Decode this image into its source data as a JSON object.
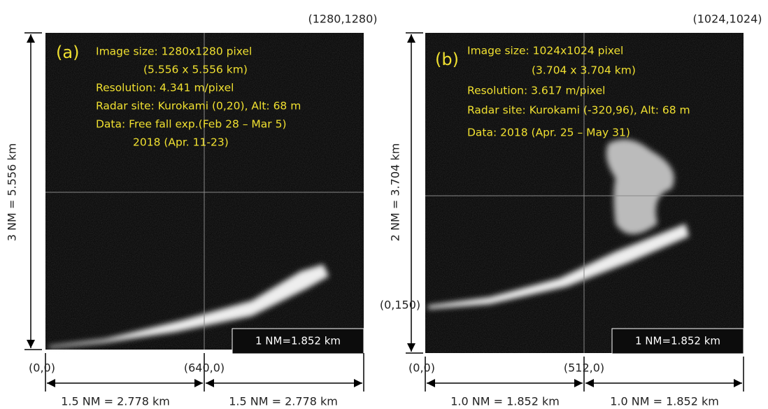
{
  "panels": [
    {
      "label": "(a)",
      "corner": "(1280,1280)",
      "info": [
        "Image size: 1280x1280 pixel",
        "(5.556 x 5.556 km)",
        "Resolution: 4.341 m/pixel",
        "Radar site: Kurokami (0,20),  Alt: 68 m",
        "Data: Free fall exp.(Feb 28 – Mar 5)",
        "2018 (Apr. 11-23)"
      ],
      "vertical_scale": "3 NM = 5.556 km",
      "origin": "(0,0)",
      "center_x": "(640,0)",
      "horizontal_scales": [
        "1.5 NM = 2.778 km",
        "1.5 NM = 2.778 km"
      ],
      "scale_bar": "1 NM=1.852 km"
    },
    {
      "label": "(b)",
      "corner": "(1024,1024)",
      "info": [
        "Image size: 1024x1024 pixel",
        "(3.704  x 3.704 km)",
        "Resolution: 3.617 m/pixel",
        "Radar site: Kurokami (-320,96),  Alt: 68 m",
        "Data: 2018 (Apr. 25 – May 31)"
      ],
      "vertical_scale": "2 NM = 3.704 km",
      "left_marker": "(0,150)",
      "origin": "(0,0)",
      "center_x": "(512,0)",
      "horizontal_scales": [
        "1.0 NM = 1.852 km",
        "1.0 NM = 1.852 km"
      ],
      "scale_bar": "1 NM=1.852 km"
    }
  ]
}
